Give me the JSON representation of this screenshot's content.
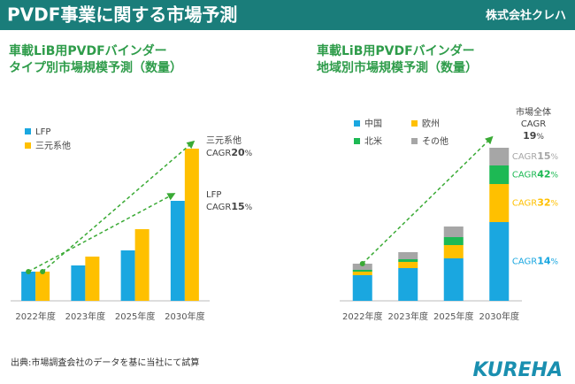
{
  "header": {
    "title": "PVDF事業に関する市場予測",
    "company": "株式会社クレハ"
  },
  "chart_data": [
    {
      "type": "grouped_bar",
      "title": [
        "車載LiB用PVDFバインダー",
        "タイプ別市場規模予測（数量）"
      ],
      "categories": [
        "2022年度",
        "2023年度",
        "2025年度",
        "2030年度"
      ],
      "ylim": [
        0,
        180
      ],
      "series": [
        {
          "name": "LFP",
          "color": "#1aa7e0",
          "values": [
            33,
            40,
            57,
            113
          ],
          "annotation": {
            "label": "LFP",
            "prefix": "CAGR",
            "cagr": "15",
            "unit": "%"
          }
        },
        {
          "name": "三元系他",
          "color": "#ffc000",
          "values": [
            33,
            50,
            81,
            172
          ],
          "annotation": {
            "label": "三元系他",
            "prefix": "CAGR",
            "cagr": "20",
            "unit": "%"
          }
        }
      ]
    },
    {
      "type": "stacked_bar",
      "title": [
        "車載LiB用PVDFバインダー",
        "地域別市場規模予測（数量）"
      ],
      "categories": [
        "2022年度",
        "2023年度",
        "2025年度",
        "2030年度"
      ],
      "ylim": [
        0,
        180
      ],
      "series": [
        {
          "name": "中国",
          "color": "#1aa7e0",
          "values": [
            29,
            37,
            48,
            89
          ],
          "prefix": "CAGR",
          "cagr": "14",
          "unit": "%"
        },
        {
          "name": "欧州",
          "color": "#ffc000",
          "values": [
            4,
            7,
            15,
            43
          ],
          "prefix": "CAGR",
          "cagr": "32",
          "unit": "%"
        },
        {
          "name": "北米",
          "color": "#1db954",
          "values": [
            2,
            3,
            9,
            21
          ],
          "prefix": "CAGR",
          "cagr": "42",
          "unit": "%"
        },
        {
          "name": "その他",
          "color": "#a6a6a6",
          "values": [
            7,
            8,
            12,
            20
          ],
          "prefix": "CAGR",
          "cagr": "15",
          "unit": "%"
        }
      ],
      "total_annotation": {
        "label": "市場全体",
        "prefix": "CAGR",
        "cagr": "19",
        "unit": "%"
      }
    }
  ],
  "footer": {
    "source": "出典:市場調査会社のデータを基に当社にて試算",
    "logo": "KUREHA"
  }
}
